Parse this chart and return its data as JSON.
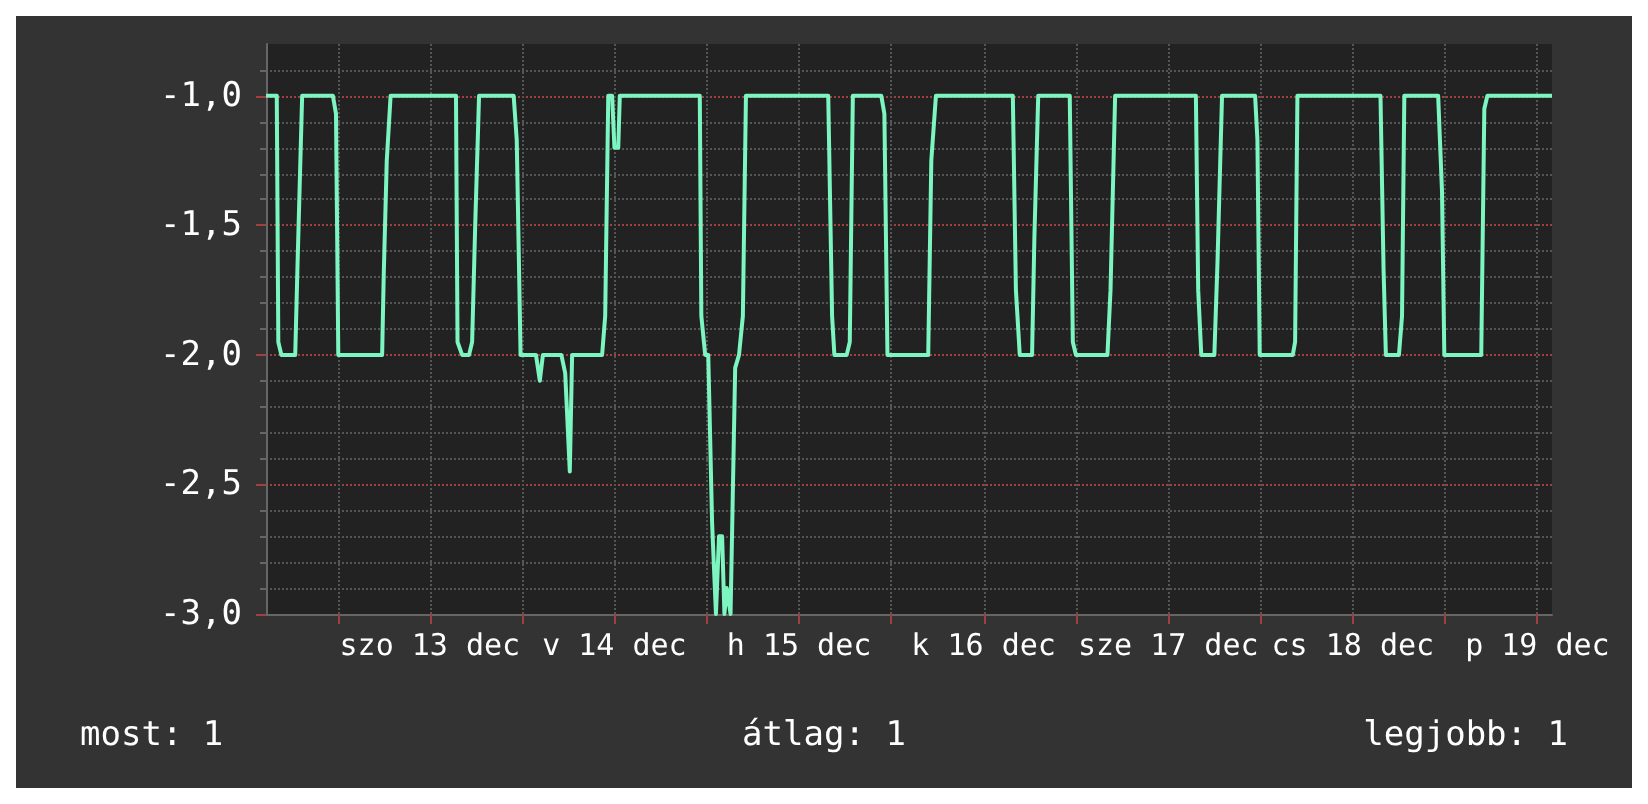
{
  "chart_data": {
    "type": "line",
    "color": "#7cf5c0",
    "grid": true,
    "marker": "none",
    "line_style": "solid",
    "x": [
      "--12-12T14:42",
      "--12-12T16:06",
      "--12-12T16:18",
      "--12-12T16:42",
      "--12-12T18:30",
      "--12-12T18:48",
      "--12-12T19:24",
      "--12-12T23:24",
      "--12-12T23:48",
      "--12-13T00:06",
      "--12-13T05:48",
      "--12-13T06:00",
      "--12-13T06:24",
      "--12-13T06:54",
      "--12-13T15:24",
      "--12-13T15:36",
      "--12-13T16:12",
      "--12-13T17:06",
      "--12-13T17:30",
      "--12-13T17:54",
      "--12-13T18:24",
      "--12-13T22:54",
      "--12-13T23:18",
      "--12-13T23:48",
      "--12-14T01:48",
      "--12-14T02:18",
      "--12-14T02:42",
      "--12-14T05:06",
      "--12-14T05:36",
      "--12-14T06:12",
      "--12-14T06:30",
      "--12-14T10:24",
      "--12-14T10:48",
      "--12-14T11:12",
      "--12-14T11:42",
      "--12-14T12:00",
      "--12-14T12:30",
      "--12-14T12:42",
      "--12-14T23:06",
      "--12-14T23:18",
      "--12-14T23:48",
      "--12-15T00:12",
      "--12-15T00:42",
      "--12-15T01:12",
      "--12-15T01:36",
      "--12-15T02:00",
      "--12-15T02:18",
      "--12-15T02:36",
      "--12-15T03:06",
      "--12-15T03:42",
      "--12-15T04:12",
      "--12-15T04:42",
      "--12-15T05:06",
      "--12-15T15:48",
      "--12-15T16:18",
      "--12-15T16:36",
      "--12-15T18:12",
      "--12-15T18:36",
      "--12-15T19:00",
      "--12-15T22:42",
      "--12-15T23:06",
      "--12-15T23:30",
      "--12-16T04:48",
      "--12-16T05:12",
      "--12-16T05:48",
      "--12-16T15:48",
      "--12-16T16:12",
      "--12-16T16:42",
      "--12-16T18:18",
      "--12-16T18:36",
      "--12-16T19:06",
      "--12-16T23:12",
      "--12-16T23:36",
      "--12-17T00:00",
      "--12-17T04:06",
      "--12-17T04:30",
      "--12-17T05:06",
      "--12-17T15:36",
      "--12-17T15:54",
      "--12-17T16:18",
      "--12-17T18:00",
      "--12-17T18:24",
      "--12-17T19:00",
      "--12-17T23:18",
      "--12-17T23:36",
      "--12-17T23:54",
      "--12-18T04:12",
      "--12-18T04:30",
      "--12-18T04:48",
      "--12-18T15:36",
      "--12-18T16:00",
      "--12-18T16:18",
      "--12-18T18:00",
      "--12-18T18:24",
      "--12-18T18:42",
      "--12-18T23:06",
      "--12-18T23:36",
      "--12-18T23:54",
      "--12-19T04:42",
      "--12-19T05:06",
      "--12-19T05:30",
      "--12-19T13:54"
    ],
    "values": [
      -1,
      -1,
      -1.95,
      -2,
      -2,
      -1.65,
      -1,
      -1,
      -1.07,
      -2,
      -2,
      -1.7,
      -1.25,
      -1,
      -1,
      -1.95,
      -2,
      -2,
      -1.95,
      -1.5,
      -1,
      -1,
      -1.17,
      -2,
      -2,
      -2.1,
      -2,
      -2,
      -2.07,
      -2.45,
      -2,
      -2,
      -1.85,
      -1,
      -1,
      -1.2,
      -1.2,
      -1,
      -1,
      -1.85,
      -2,
      -2,
      -2.65,
      -3,
      -2.7,
      -2.7,
      -3,
      -2.9,
      -3,
      -2.05,
      -2,
      -1.85,
      -1,
      -1,
      -1.85,
      -2,
      -2,
      -1.95,
      -1,
      -1,
      -1.07,
      -2,
      -2,
      -1.25,
      -1,
      -1,
      -1.75,
      -2,
      -2,
      -1.55,
      -1,
      -1,
      -1.95,
      -2,
      -2,
      -1.75,
      -1,
      -1,
      -1.75,
      -2,
      -2,
      -1.65,
      -1,
      -1,
      -1.17,
      -2,
      -2,
      -1.95,
      -1,
      -1,
      -1.67,
      -2,
      -2,
      -1.85,
      -1,
      -1,
      -1.37,
      -2,
      -2,
      -1.05,
      -1,
      -1
    ],
    "xlim": [
      "--12-12T14:42",
      "--12-19T13:54"
    ],
    "xticks": [
      {
        "value": "--12-13T00:00",
        "label": null
      },
      {
        "value": "--12-13T12:00",
        "label": "szo 13 dec"
      },
      {
        "value": "--12-14T00:00",
        "label": null
      },
      {
        "value": "--12-14T12:00",
        "label": "v 14 dec"
      },
      {
        "value": "--12-15T00:00",
        "label": null
      },
      {
        "value": "--12-15T12:00",
        "label": "h 15 dec"
      },
      {
        "value": "--12-16T00:00",
        "label": null
      },
      {
        "value": "--12-16T12:00",
        "label": "k 16 dec"
      },
      {
        "value": "--12-17T00:00",
        "label": null
      },
      {
        "value": "--12-17T12:00",
        "label": "sze 17 dec"
      },
      {
        "value": "--12-18T00:00",
        "label": null
      },
      {
        "value": "--12-18T12:00",
        "label": "cs 18 dec"
      },
      {
        "value": "--12-19T00:00",
        "label": null
      },
      {
        "value": "--12-19T12:00",
        "label": "p 19 dec"
      }
    ],
    "ylim": [
      -3,
      -0.8
    ],
    "yticks": [
      {
        "value": -3,
        "label": "-3,0"
      },
      {
        "value": -2.5,
        "label": "-2,5"
      },
      {
        "value": -2,
        "label": "-2,0"
      },
      {
        "value": -1.5,
        "label": "-1,5"
      },
      {
        "value": -1,
        "label": "-1,0"
      }
    ],
    "annotations": [
      "most: 1",
      "átlag: 1",
      "legjobb: 1"
    ]
  }
}
